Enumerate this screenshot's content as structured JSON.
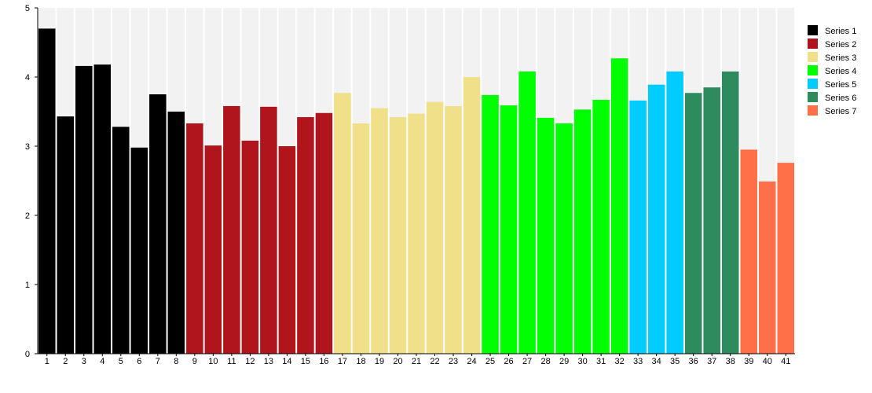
{
  "chart_data": {
    "type": "bar",
    "title": "",
    "xlabel": "",
    "ylabel": "",
    "ylim": [
      0,
      5
    ],
    "yticks": [
      0,
      1,
      2,
      3,
      4,
      5
    ],
    "grid": false,
    "legend_position": "right",
    "categories": [
      "1",
      "2",
      "3",
      "4",
      "5",
      "6",
      "7",
      "8",
      "9",
      "10",
      "11",
      "12",
      "13",
      "14",
      "15",
      "16",
      "17",
      "18",
      "19",
      "20",
      "21",
      "22",
      "23",
      "24",
      "25",
      "26",
      "27",
      "28",
      "29",
      "30",
      "31",
      "32",
      "33",
      "34",
      "35",
      "36",
      "37",
      "38",
      "39",
      "40",
      "41"
    ],
    "values": [
      4.7,
      3.43,
      4.16,
      4.18,
      3.28,
      2.98,
      3.75,
      3.5,
      3.33,
      3.01,
      3.58,
      3.08,
      3.57,
      3.0,
      3.42,
      3.48,
      3.77,
      3.33,
      3.55,
      3.42,
      3.47,
      3.64,
      3.58,
      4.0,
      3.74,
      3.59,
      4.08,
      3.41,
      3.33,
      3.53,
      3.67,
      4.27,
      3.66,
      3.89,
      4.08,
      3.77,
      3.85,
      4.08,
      2.95,
      2.49,
      2.76
    ],
    "series_of_bar": [
      1,
      1,
      1,
      1,
      1,
      1,
      1,
      1,
      2,
      2,
      2,
      2,
      2,
      2,
      2,
      2,
      3,
      3,
      3,
      3,
      3,
      3,
      3,
      3,
      4,
      4,
      4,
      4,
      4,
      4,
      4,
      4,
      5,
      5,
      5,
      6,
      6,
      6,
      7,
      7,
      7
    ],
    "series": [
      {
        "name": "Series 1",
        "color": "#000000"
      },
      {
        "name": "Series 2",
        "color": "#B0151D"
      },
      {
        "name": "Series 3",
        "color": "#F0E08A"
      },
      {
        "name": "Series 4",
        "color": "#00FF00"
      },
      {
        "name": "Series 5",
        "color": "#00CCFF"
      },
      {
        "name": "Series 6",
        "color": "#2E8B5E"
      },
      {
        "name": "Series 7",
        "color": "#FF7048"
      }
    ],
    "background_bar_color": "#F2F2F2"
  }
}
